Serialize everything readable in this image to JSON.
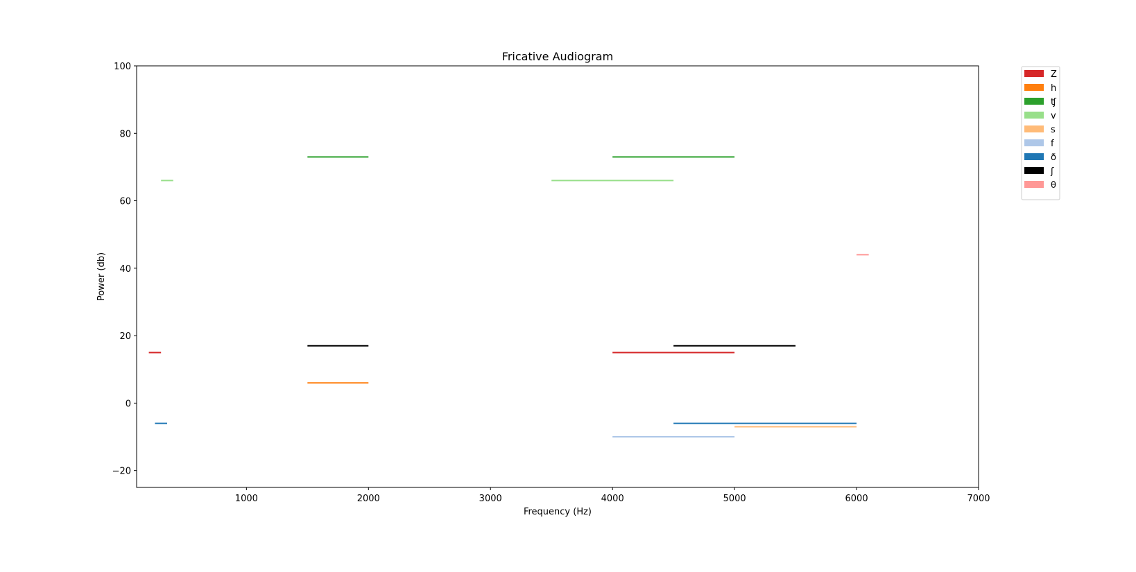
{
  "chart_data": {
    "type": "line",
    "title": "Fricative Audiogram",
    "xlabel": "Frequency (Hz)",
    "ylabel": "Power (db)",
    "xlim": [
      100,
      7000
    ],
    "ylim": [
      -25,
      100
    ],
    "xticks": [
      1000,
      2000,
      3000,
      4000,
      5000,
      6000,
      7000
    ],
    "yticks": [
      -20,
      0,
      20,
      40,
      60,
      80,
      100
    ],
    "ytick_labels": [
      "−20",
      "0",
      "20",
      "40",
      "60",
      "80",
      "100"
    ],
    "grid": false,
    "legend_position": "outside-top-right",
    "series": [
      {
        "name": "Z",
        "color": "#d62728",
        "segments": [
          {
            "x": [
              200,
              300
            ],
            "y": 15
          },
          {
            "x": [
              4000,
              5000
            ],
            "y": 15
          }
        ]
      },
      {
        "name": "h",
        "color": "#ff7f0e",
        "segments": [
          {
            "x": [
              1500,
              2000
            ],
            "y": 6
          }
        ]
      },
      {
        "name": "ʧ",
        "color": "#2ca02c",
        "segments": [
          {
            "x": [
              1500,
              2000
            ],
            "y": 73
          },
          {
            "x": [
              4000,
              5000
            ],
            "y": 73
          }
        ]
      },
      {
        "name": "v",
        "color": "#98df8a",
        "segments": [
          {
            "x": [
              300,
              400
            ],
            "y": 66
          },
          {
            "x": [
              3500,
              4500
            ],
            "y": 66
          }
        ]
      },
      {
        "name": "s",
        "color": "#ffbb78",
        "segments": [
          {
            "x": [
              5000,
              6000
            ],
            "y": -7
          }
        ]
      },
      {
        "name": "f",
        "color": "#aec7e8",
        "segments": [
          {
            "x": [
              4000,
              5000
            ],
            "y": -10
          }
        ]
      },
      {
        "name": "ð",
        "color": "#1f77b4",
        "segments": [
          {
            "x": [
              250,
              350
            ],
            "y": -6
          },
          {
            "x": [
              4500,
              6000
            ],
            "y": -6
          }
        ]
      },
      {
        "name": "ʃ",
        "color": "#000000",
        "segments": [
          {
            "x": [
              1500,
              2000
            ],
            "y": 17
          },
          {
            "x": [
              4500,
              5500
            ],
            "y": 17
          }
        ]
      },
      {
        "name": "θ",
        "color": "#ff9896",
        "segments": [
          {
            "x": [
              6000,
              6100
            ],
            "y": 44
          }
        ]
      }
    ]
  }
}
